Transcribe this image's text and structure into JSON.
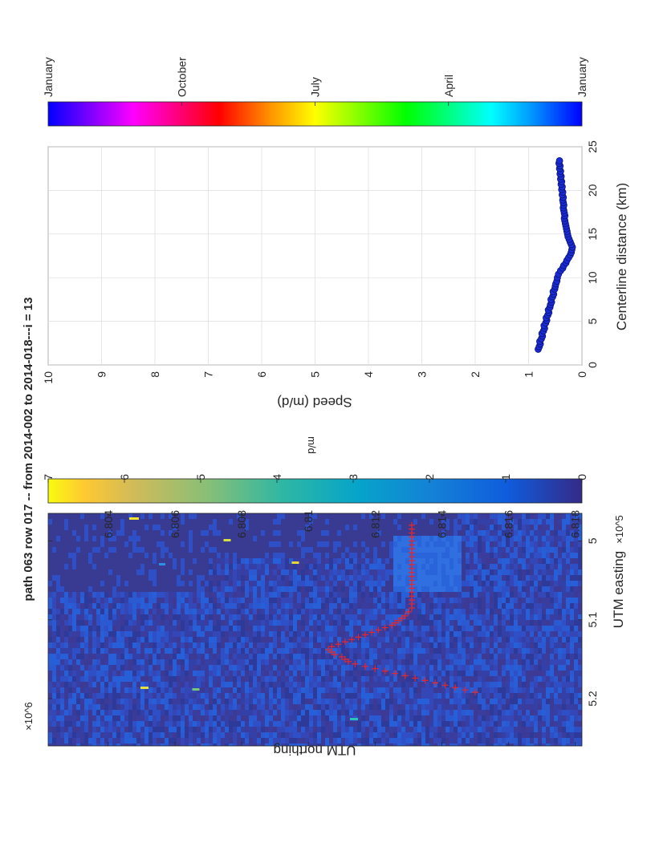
{
  "title": "path 063 row 017  -- from 2014-002 to 2014-018---i = 13",
  "chart_data": [
    {
      "type": "heatmap",
      "xlabel": "UTM easting",
      "ylabel": "UTM northing",
      "x_exponent": "×10^5",
      "y_exponent": "×10^6",
      "xlim": [
        4.965,
        5.26
      ],
      "ylim": [
        6.8022,
        6.8182
      ],
      "x_ticks": [
        "5",
        "5.1",
        "5.2"
      ],
      "y_ticks": [
        "6.804",
        "6.806",
        "6.808",
        "6.81",
        "6.812",
        "6.814",
        "6.816",
        "6.818"
      ],
      "colorbar": {
        "label": "m/d",
        "range": [
          0,
          7
        ],
        "ticks": [
          "0",
          "1",
          "2",
          "3",
          "4",
          "5",
          "6",
          "7"
        ],
        "colormap": "parula"
      },
      "centerline_color": "#e8262a",
      "centerline_points": [
        [
          5.192,
          6.815
        ],
        [
          5.189,
          6.8147
        ],
        [
          5.186,
          6.8144
        ],
        [
          5.183,
          6.8141
        ],
        [
          5.18,
          6.8138
        ],
        [
          5.177,
          6.8135
        ],
        [
          5.174,
          6.8132
        ],
        [
          5.171,
          6.8129
        ],
        [
          5.168,
          6.8126
        ],
        [
          5.165,
          6.8123
        ],
        [
          5.162,
          6.812
        ],
        [
          5.159,
          6.8117
        ],
        [
          5.156,
          6.8114
        ],
        [
          5.153,
          6.8112
        ],
        [
          5.15,
          6.8111
        ],
        [
          5.147,
          6.811
        ],
        [
          5.144,
          6.8108
        ],
        [
          5.141,
          6.8107
        ],
        [
          5.138,
          6.8106
        ],
        [
          5.134,
          6.8107
        ],
        [
          5.131,
          6.8109
        ],
        [
          5.128,
          6.8111
        ],
        [
          5.125,
          6.8113
        ],
        [
          5.122,
          6.8115
        ],
        [
          5.119,
          6.8117
        ],
        [
          5.116,
          6.8119
        ],
        [
          5.113,
          6.8121
        ],
        [
          5.11,
          6.8123
        ],
        [
          5.107,
          6.8125
        ],
        [
          5.104,
          6.8126
        ],
        [
          5.101,
          6.8127
        ],
        [
          5.098,
          6.8128
        ],
        [
          5.095,
          6.8129
        ],
        [
          5.09,
          6.813
        ],
        [
          5.085,
          6.8131
        ],
        [
          5.08,
          6.8131
        ],
        [
          5.075,
          6.8131
        ],
        [
          5.07,
          6.8131
        ],
        [
          5.065,
          6.8131
        ],
        [
          5.06,
          6.8131
        ],
        [
          5.055,
          6.8131
        ],
        [
          5.05,
          6.8131
        ],
        [
          5.045,
          6.8131
        ],
        [
          5.04,
          6.8131
        ],
        [
          5.035,
          6.8131
        ],
        [
          5.03,
          6.8131
        ],
        [
          5.025,
          6.8131
        ],
        [
          5.02,
          6.8131
        ],
        [
          5.015,
          6.8131
        ],
        [
          5.01,
          6.8131
        ],
        [
          5.005,
          6.8131
        ],
        [
          5.0,
          6.8131
        ],
        [
          4.995,
          6.8131
        ],
        [
          4.99,
          6.8131
        ],
        [
          4.985,
          6.8131
        ],
        [
          4.98,
          6.8131
        ]
      ]
    },
    {
      "type": "scatter",
      "xlabel": "Centerline distance (km)",
      "ylabel": "Speed (m/d)",
      "xlim": [
        0,
        25
      ],
      "ylim": [
        0,
        10
      ],
      "x_ticks": [
        "0",
        "5",
        "10",
        "15",
        "20",
        "25"
      ],
      "y_ticks": [
        "0",
        "1",
        "2",
        "3",
        "4",
        "5",
        "6",
        "7",
        "8",
        "9",
        "10"
      ],
      "grid": true,
      "marker_color": "#1a2bd6",
      "colorbar": {
        "colormap": "hsv",
        "ticks": [
          "January",
          "April",
          "July",
          "October",
          "January"
        ]
      },
      "x": [
        1.8,
        2.1,
        2.4,
        2.7,
        3.0,
        3.3,
        3.6,
        3.9,
        4.2,
        4.5,
        4.8,
        5.1,
        5.4,
        5.7,
        6.0,
        6.3,
        6.6,
        6.9,
        7.2,
        7.5,
        7.8,
        8.1,
        8.4,
        8.7,
        9.0,
        9.3,
        9.6,
        10.0,
        10.4,
        10.8,
        11.1,
        11.4,
        11.7,
        12.0,
        12.3,
        12.6,
        12.9,
        13.2,
        13.5,
        13.8,
        14.1,
        14.4,
        14.7,
        15.0,
        15.3,
        15.6,
        15.9,
        16.2,
        16.5,
        16.8,
        17.1,
        17.4,
        17.7,
        18.0,
        18.3,
        18.6,
        18.9,
        19.2,
        19.5,
        19.8,
        20.1,
        20.4,
        20.7,
        21.0,
        21.3,
        21.6,
        21.9,
        22.2,
        22.5,
        22.8,
        23.1,
        23.4
      ],
      "y": [
        0.82,
        0.8,
        0.78,
        0.79,
        0.76,
        0.74,
        0.75,
        0.72,
        0.7,
        0.71,
        0.68,
        0.66,
        0.67,
        0.64,
        0.62,
        0.63,
        0.6,
        0.59,
        0.57,
        0.58,
        0.55,
        0.53,
        0.54,
        0.51,
        0.5,
        0.49,
        0.47,
        0.46,
        0.44,
        0.4,
        0.36,
        0.34,
        0.3,
        0.28,
        0.25,
        0.22,
        0.2,
        0.19,
        0.18,
        0.2,
        0.22,
        0.24,
        0.26,
        0.27,
        0.28,
        0.29,
        0.3,
        0.31,
        0.32,
        0.33,
        0.32,
        0.33,
        0.34,
        0.35,
        0.34,
        0.35,
        0.36,
        0.35,
        0.37,
        0.36,
        0.38,
        0.37,
        0.39,
        0.38,
        0.4,
        0.39,
        0.41,
        0.4,
        0.42,
        0.41,
        0.43,
        0.42
      ]
    }
  ]
}
